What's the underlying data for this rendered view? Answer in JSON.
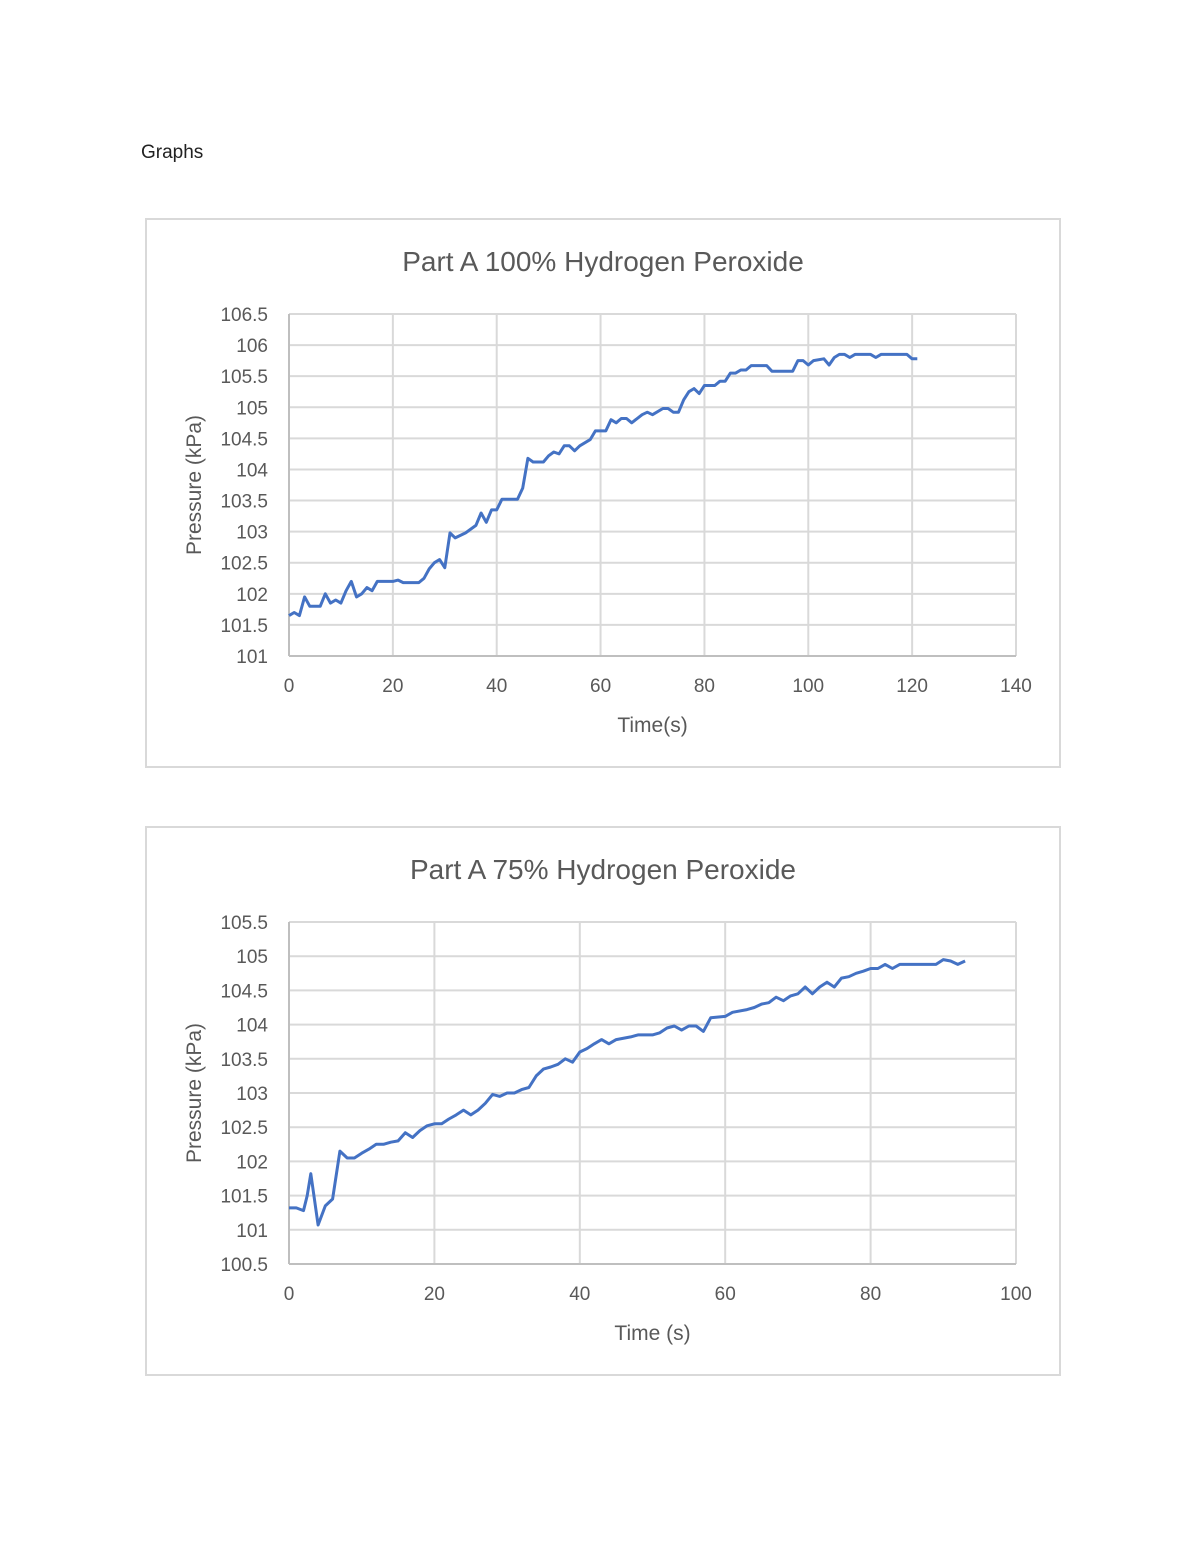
{
  "document": {
    "heading": "Graphs"
  },
  "chart_data": [
    {
      "type": "line",
      "title": "Part A 100% Hydrogen Peroxide",
      "xlabel": "Time(s)",
      "ylabel": "Pressure (kPa)",
      "xlim": [
        0,
        140
      ],
      "ylim": [
        101,
        106.5
      ],
      "xticks": [
        "0",
        "20",
        "40",
        "60",
        "80",
        "100",
        "120",
        "140"
      ],
      "yticks": [
        "101",
        "101.5",
        "102",
        "102.5",
        "103",
        "103.5",
        "104",
        "104.5",
        "105",
        "105.5",
        "106",
        "106.5"
      ],
      "grid": true,
      "line_color": "#4472C4",
      "x": [
        0,
        1,
        2,
        3,
        4,
        6,
        7,
        8,
        9,
        10,
        11,
        12,
        13,
        14,
        15,
        16,
        17,
        20,
        21,
        22,
        25,
        26,
        27,
        28,
        29,
        30,
        31,
        32,
        34,
        36,
        37,
        38,
        39,
        40,
        41,
        44,
        45,
        46,
        47,
        49,
        50,
        51,
        52,
        53,
        54,
        55,
        56,
        58,
        59,
        61,
        62,
        63,
        64,
        65,
        66,
        68,
        69,
        70,
        72,
        73,
        74,
        75,
        76,
        77,
        78,
        79,
        80,
        82,
        83,
        84,
        85,
        86,
        87,
        88,
        89,
        92,
        93,
        97,
        98,
        99,
        100,
        101,
        103,
        104,
        105,
        106,
        107,
        108,
        109,
        112,
        113,
        114,
        119,
        120,
        121
      ],
      "y": [
        101.65,
        101.7,
        101.65,
        101.95,
        101.8,
        101.8,
        102.0,
        101.85,
        101.9,
        101.85,
        102.05,
        102.2,
        101.95,
        102.0,
        102.1,
        102.05,
        102.2,
        102.2,
        102.22,
        102.18,
        102.18,
        102.25,
        102.4,
        102.5,
        102.55,
        102.42,
        102.98,
        102.9,
        102.98,
        103.1,
        103.3,
        103.15,
        103.35,
        103.35,
        103.52,
        103.52,
        103.7,
        104.18,
        104.12,
        104.12,
        104.22,
        104.28,
        104.25,
        104.38,
        104.38,
        104.3,
        104.38,
        104.48,
        104.62,
        104.62,
        104.8,
        104.75,
        104.82,
        104.82,
        104.75,
        104.88,
        104.92,
        104.88,
        104.98,
        104.98,
        104.92,
        104.92,
        105.12,
        105.25,
        105.3,
        105.22,
        105.35,
        105.35,
        105.42,
        105.42,
        105.55,
        105.55,
        105.6,
        105.6,
        105.67,
        105.67,
        105.58,
        105.58,
        105.75,
        105.75,
        105.68,
        105.75,
        105.78,
        105.68,
        105.8,
        105.85,
        105.85,
        105.8,
        105.85,
        105.85,
        105.8,
        105.85,
        105.85,
        105.78,
        105.78
      ]
    },
    {
      "type": "line",
      "title": "Part A 75% Hydrogen Peroxide",
      "xlabel": "Time (s)",
      "ylabel": "Pressure (kPa)",
      "xlim": [
        0,
        100
      ],
      "ylim": [
        100.5,
        105.5
      ],
      "xticks": [
        "0",
        "20",
        "40",
        "60",
        "80",
        "100"
      ],
      "yticks": [
        "100.5",
        "101",
        "101.5",
        "102",
        "102.5",
        "103",
        "103.5",
        "104",
        "104.5",
        "105",
        "105.5"
      ],
      "grid": true,
      "line_color": "#4472C4",
      "x": [
        0,
        1,
        2,
        2.5,
        3,
        4,
        5,
        6,
        7,
        8,
        9,
        10,
        11,
        12,
        13,
        14,
        15,
        16,
        17,
        18,
        19,
        20,
        21,
        22,
        23,
        24,
        25,
        26,
        27,
        28,
        29,
        30,
        31,
        32,
        33,
        34,
        35,
        36,
        37,
        38,
        39,
        40,
        41,
        42,
        43,
        44,
        45,
        47,
        48,
        50,
        51,
        52,
        53,
        54,
        55,
        56,
        57,
        58,
        60,
        61,
        63,
        64,
        65,
        66,
        67,
        68,
        69,
        70,
        71,
        72,
        73,
        74,
        75,
        76,
        77,
        78,
        79,
        80,
        81,
        82,
        83,
        84,
        89,
        90,
        91,
        92,
        93
      ],
      "y": [
        101.32,
        101.32,
        101.28,
        101.5,
        101.82,
        101.07,
        101.35,
        101.45,
        102.15,
        102.05,
        102.05,
        102.12,
        102.18,
        102.25,
        102.25,
        102.28,
        102.3,
        102.42,
        102.35,
        102.45,
        102.52,
        102.55,
        102.55,
        102.62,
        102.68,
        102.75,
        102.68,
        102.75,
        102.85,
        102.98,
        102.95,
        103.0,
        103.0,
        103.05,
        103.08,
        103.25,
        103.35,
        103.38,
        103.42,
        103.5,
        103.45,
        103.6,
        103.65,
        103.72,
        103.78,
        103.72,
        103.78,
        103.82,
        103.85,
        103.85,
        103.88,
        103.95,
        103.98,
        103.92,
        103.98,
        103.98,
        103.9,
        104.1,
        104.12,
        104.18,
        104.22,
        104.25,
        104.3,
        104.32,
        104.4,
        104.35,
        104.42,
        104.45,
        104.55,
        104.45,
        104.55,
        104.62,
        104.55,
        104.68,
        104.7,
        104.75,
        104.78,
        104.82,
        104.82,
        104.88,
        104.82,
        104.88,
        104.88,
        104.95,
        104.93,
        104.88,
        104.93
      ]
    }
  ]
}
